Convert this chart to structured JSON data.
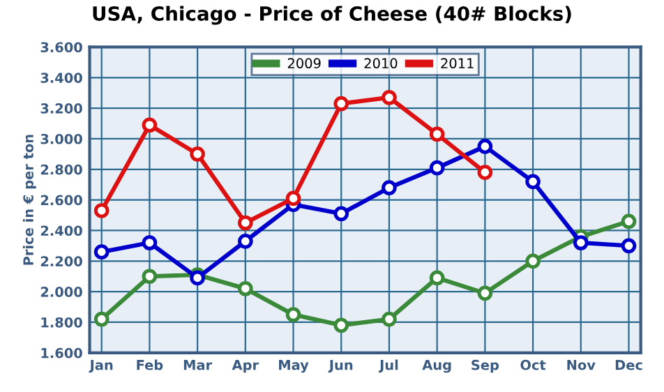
{
  "chart_data": {
    "type": "line",
    "title": "USA, Chicago - Price of Cheese (40# Blocks)",
    "ylabel": "Price in € per ton",
    "categories": [
      "Jan",
      "Feb",
      "Mar",
      "Apr",
      "May",
      "Jun",
      "Jul",
      "Aug",
      "Sep",
      "Oct",
      "Nov",
      "Dec"
    ],
    "series": [
      {
        "name": "2009",
        "color": "#3a8a3a",
        "values": [
          1.82,
          2.1,
          2.11,
          2.02,
          1.85,
          1.78,
          1.82,
          2.09,
          1.99,
          2.2,
          2.36,
          2.46
        ]
      },
      {
        "name": "2010",
        "color": "#0000cc",
        "values": [
          2.26,
          2.32,
          2.09,
          2.33,
          2.57,
          2.51,
          2.68,
          2.81,
          2.95,
          2.72,
          2.32,
          2.3
        ]
      },
      {
        "name": "2011",
        "color": "#dd1111",
        "values": [
          2.53,
          3.09,
          2.9,
          2.45,
          2.61,
          3.23,
          3.27,
          3.03,
          2.78,
          null,
          null,
          null
        ]
      }
    ],
    "ylim": [
      1.6,
      3.6
    ],
    "yticks": [
      {
        "value": 1.6,
        "label": "1.600"
      },
      {
        "value": 1.8,
        "label": "1.800"
      },
      {
        "value": 2.0,
        "label": "2.000"
      },
      {
        "value": 2.2,
        "label": "2.200"
      },
      {
        "value": 2.4,
        "label": "2.400"
      },
      {
        "value": 2.6,
        "label": "2.600"
      },
      {
        "value": 2.8,
        "label": "2.800"
      },
      {
        "value": 3.0,
        "label": "3.000"
      },
      {
        "value": 3.2,
        "label": "3.200"
      },
      {
        "value": 3.4,
        "label": "3.400"
      },
      {
        "value": 3.6,
        "label": "3.600"
      }
    ],
    "grid": true,
    "legend": "top",
    "marker": "circle",
    "line_style": "solid"
  }
}
